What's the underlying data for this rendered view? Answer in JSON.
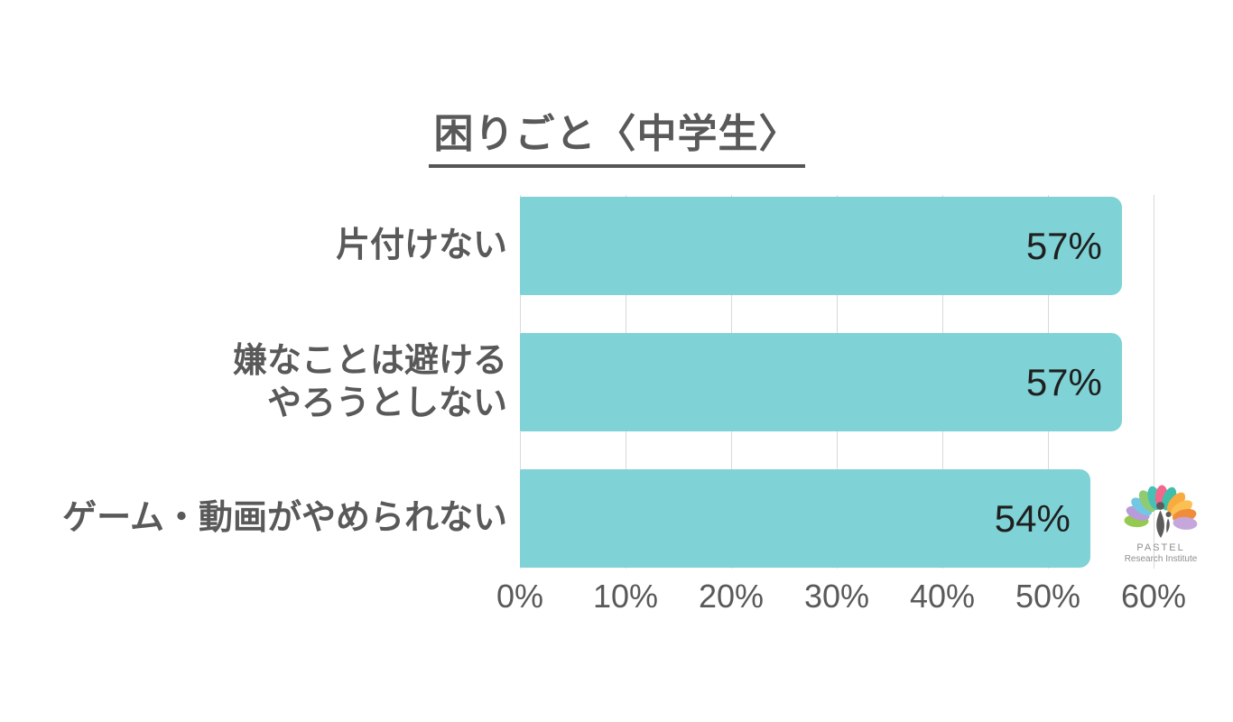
{
  "chart_data": {
    "type": "bar",
    "orientation": "horizontal",
    "title": "困りごと〈中学生〉",
    "categories": [
      "片付けない",
      "嫌なことは避ける\nやろうとしない",
      "ゲーム・動画がやめられない"
    ],
    "values": [
      57,
      57,
      54
    ],
    "value_labels": [
      "57%",
      "57%",
      "54%"
    ],
    "xlabel": "",
    "ylabel": "",
    "xlim": [
      0,
      60
    ],
    "x_ticks": [
      0,
      10,
      20,
      30,
      40,
      50,
      60
    ],
    "x_tick_labels": [
      "0%",
      "10%",
      "20%",
      "30%",
      "40%",
      "50%",
      "60%"
    ],
    "grid": true,
    "legend": false,
    "bar_color": "#7fd2d5",
    "grid_color": "#d9d9d9",
    "title_color": "#595959",
    "label_color": "#595959",
    "value_label_color": "#1f1f1f"
  },
  "logo": {
    "line1": "PASTEL",
    "line2": "Research Institute",
    "figure_color": "#5b5b5b",
    "petals": [
      {
        "angle": -88,
        "color": "#93ca4f"
      },
      {
        "angle": -70,
        "color": "#b89bd8"
      },
      {
        "angle": -52,
        "color": "#74c7e4"
      },
      {
        "angle": -33,
        "color": "#8fcb72"
      },
      {
        "angle": -15,
        "color": "#47c1b6"
      },
      {
        "angle": 2,
        "color": "#f2688c"
      },
      {
        "angle": 20,
        "color": "#3fbfa9"
      },
      {
        "angle": 39,
        "color": "#f9ab3f"
      },
      {
        "angle": 58,
        "color": "#fbc054"
      },
      {
        "angle": 76,
        "color": "#f18c3c"
      },
      {
        "angle": 94,
        "color": "#c6a7db"
      }
    ]
  }
}
